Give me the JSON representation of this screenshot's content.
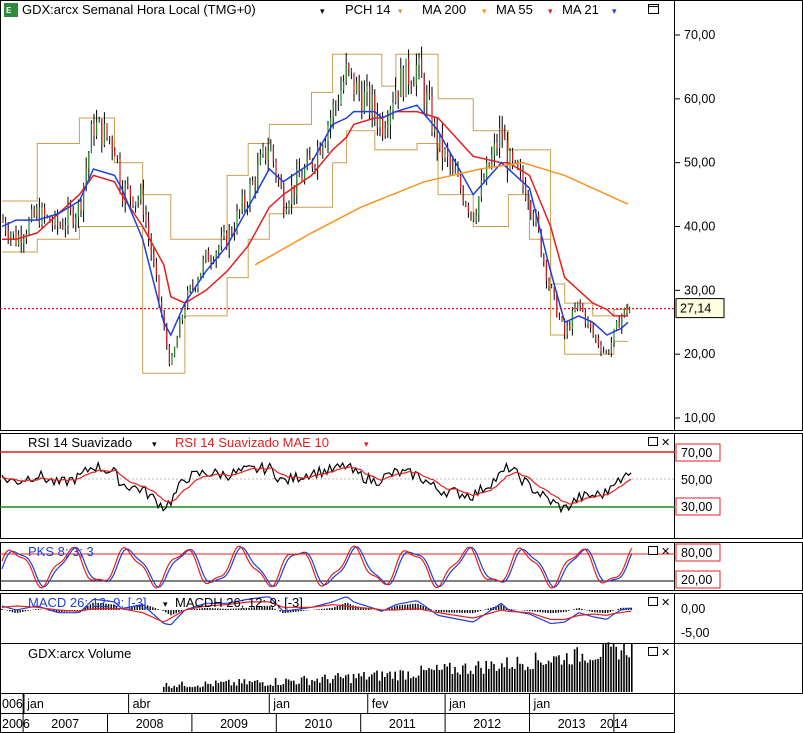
{
  "header": {
    "symbol_label": "GDX:arcx Semanal Hora Local (TMG+0)",
    "legend": [
      {
        "label": "PCH 14",
        "color": "#c8a050"
      },
      {
        "label": "MA 200",
        "color": "#f7941d"
      },
      {
        "label": "MA 55",
        "color": "#e4201f"
      },
      {
        "label": "MA 21",
        "color": "#1f3fd8"
      }
    ]
  },
  "panels": {
    "rsi": {
      "label_1": "RSI 14 Suavizado",
      "label_2": "RSI 14 Suavizado MAE 10"
    },
    "pks": {
      "label": "PKS 8; 3; 3"
    },
    "macd": {
      "label_1": "MACD 26; 12; 9; [-3]",
      "label_2": "MACDH 26; 12; 9; [-3]"
    },
    "volume": {
      "label": "GDX:arcx Volume"
    }
  },
  "colors": {
    "candle": "#000000",
    "price_line": "#d9161b",
    "ma21": "#1f3fd8",
    "ma55": "#e4201f",
    "ma200": "#f7941d",
    "channel": "#c8a050",
    "rsi_upper": "#e4201f",
    "rsi_lower": "#1a8a1a"
  },
  "chart_data": [
    {
      "type": "line",
      "name": "price",
      "y_ticks": [
        "70,00",
        "60,00",
        "50,00",
        "40,00",
        "30,00",
        "20,00",
        "10,00"
      ],
      "ylim": [
        3,
        77
      ],
      "last_value": 27.14,
      "last_value_label": "27,14",
      "x_dates": [
        "2006-10",
        "2006-12",
        "2007-03",
        "2007-06",
        "2007-09",
        "2007-11",
        "2008-02",
        "2008-03",
        "2008-06",
        "2008-09",
        "2008-10",
        "2008-12",
        "2009-03",
        "2009-06",
        "2009-09",
        "2009-12",
        "2010-02",
        "2010-06",
        "2010-09",
        "2010-11",
        "2010-12",
        "2011-03",
        "2011-04",
        "2011-06",
        "2011-09",
        "2011-12",
        "2012-05",
        "2012-09",
        "2012-10",
        "2013-01",
        "2013-04",
        "2013-06",
        "2013-08",
        "2013-10",
        "2013-12",
        "2014-01",
        "2014-02",
        "2014-03"
      ],
      "close": [
        41,
        38,
        42,
        40,
        43,
        56,
        53,
        46,
        44,
        24,
        18,
        28,
        35,
        38,
        45,
        53,
        44,
        50,
        58,
        64,
        62,
        58,
        56,
        62,
        65,
        53,
        42,
        55,
        50,
        45,
        30,
        23,
        28,
        23,
        20,
        23,
        26,
        27.14
      ],
      "ma21": [
        40,
        41,
        41,
        42,
        44,
        49,
        48,
        46,
        38,
        25,
        23,
        28,
        33,
        37,
        43,
        49,
        47,
        50,
        56,
        57,
        58,
        58,
        57,
        58,
        59,
        55,
        45,
        50,
        49,
        46,
        33,
        25,
        26,
        25,
        23,
        23.5,
        24,
        25
      ],
      "ma55": [
        38,
        38,
        39,
        42,
        45,
        48,
        47,
        45,
        40,
        34,
        29,
        28,
        30,
        33,
        37,
        43,
        45,
        48,
        52,
        54,
        56,
        57,
        57,
        58,
        58,
        57,
        51,
        50,
        50,
        48,
        40,
        32,
        30,
        28,
        27,
        26,
        26,
        26
      ],
      "ma200_x": [
        "2009-10",
        "2010-06",
        "2011-01",
        "2011-10",
        "2012-06",
        "2012-12",
        "2013-06",
        "2014-03"
      ],
      "ma200": [
        34,
        39,
        43,
        47,
        49,
        50,
        48,
        43.5
      ],
      "pch_upper": [
        44,
        44,
        53,
        53,
        57,
        57,
        50,
        50,
        45,
        45,
        38,
        38,
        38,
        48,
        53,
        56,
        56,
        61,
        67,
        67,
        67,
        67,
        62,
        67,
        67,
        60,
        55,
        55,
        52,
        52,
        31,
        28,
        28,
        26,
        26,
        27,
        27,
        28
      ],
      "pch_lower": [
        36,
        36,
        38,
        38,
        40,
        40,
        40,
        40,
        17,
        17,
        17,
        26,
        26,
        32,
        38,
        42,
        43,
        43,
        50,
        55,
        55,
        52,
        52,
        52,
        53,
        45,
        40,
        40,
        45,
        38,
        23,
        20,
        20,
        20,
        20,
        22,
        22,
        22
      ]
    },
    {
      "type": "line",
      "name": "RSI 14 Suavizado",
      "ylim": [
        10,
        90
      ],
      "levels": [
        70,
        30
      ],
      "level_labels": [
        "70,00",
        "50,00",
        "30,00"
      ],
      "rsi": [
        55,
        52,
        58,
        50,
        56,
        66,
        60,
        50,
        45,
        30,
        35,
        55,
        60,
        58,
        62,
        64,
        52,
        60,
        62,
        66,
        60,
        52,
        55,
        60,
        58,
        45,
        40,
        58,
        65,
        48,
        35,
        28,
        38,
        40,
        42,
        55,
        50,
        62
      ]
    },
    {
      "type": "line",
      "name": "PKS 8; 3; 3",
      "ylim": [
        0,
        100
      ],
      "levels": [
        80,
        20
      ],
      "level_labels": [
        "80,00",
        "20,00"
      ]
    },
    {
      "type": "area",
      "name": "MACD 26; 12; 9; [-3]",
      "level_labels": [
        "0,00",
        "-5,00"
      ]
    },
    {
      "type": "bar",
      "name": "GDX:arcx Volume"
    }
  ],
  "x_axis": {
    "year_labels": [
      "2006",
      "2007",
      "2008",
      "2009",
      "2010",
      "2011",
      "2012",
      "2013",
      "2014"
    ],
    "month_labels": [
      "jan",
      "abr",
      "jan",
      "fev",
      "jan",
      "jan"
    ]
  }
}
